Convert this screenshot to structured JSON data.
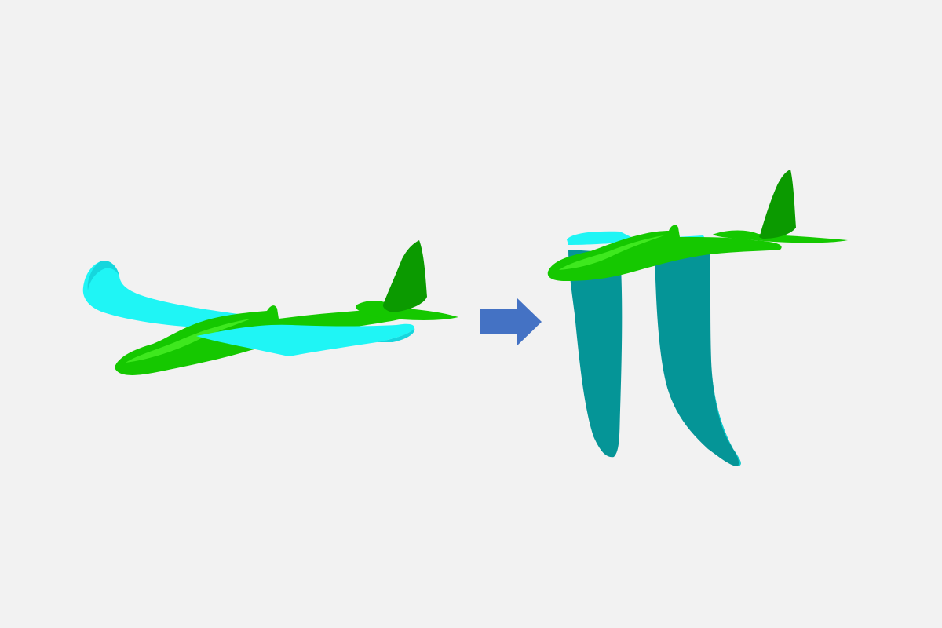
{
  "colors": {
    "background": "#f2f2f2",
    "fuselage": "#15c800",
    "fuselage_light": "#3ee81e",
    "fuselage_dark": "#0b9a00",
    "wing_flat": "#1ff5f5",
    "wing_flat_shade": "#16d6dd",
    "wing_folded": "#059597",
    "wing_folded_edge": "#10d0d2",
    "arrow": "#4472c4"
  },
  "panels": [
    {
      "id": "before",
      "state": "wings-extended",
      "wing_fold_angle_deg": 0
    },
    {
      "id": "after",
      "state": "wings-folded-down",
      "wing_fold_angle_deg": 90
    }
  ],
  "transition": {
    "icon": "right-arrow-icon"
  }
}
